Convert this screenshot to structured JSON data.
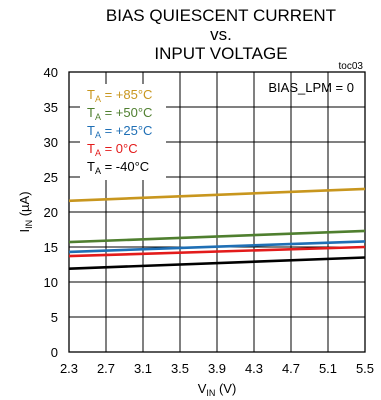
{
  "chart_data": {
    "type": "line",
    "title_lines": [
      "BIAS QUIESCENT CURRENT",
      "vs.",
      "INPUT VOLTAGE"
    ],
    "figure_id": "toc03",
    "annotation": "BIAS_LPM = 0",
    "xlabel": {
      "main": "V",
      "sub": "IN",
      "unit": " (V)"
    },
    "ylabel": {
      "main": "I",
      "sub": "IN",
      "unit": " (µA)"
    },
    "xlim": [
      2.3,
      5.5
    ],
    "ylim": [
      0,
      40
    ],
    "x_ticks": [
      "2.3",
      "2.7",
      "3.1",
      "3.5",
      "3.9",
      "4.3",
      "4.7",
      "5.1",
      "5.5"
    ],
    "y_ticks": [
      "0",
      "5",
      "10",
      "15",
      "20",
      "25",
      "30",
      "35",
      "40"
    ],
    "grid": true,
    "legend_position": "top-left",
    "series": [
      {
        "name": "+85°C",
        "label_prefix": "T",
        "label_sub": "A",
        "label_sep": " = ",
        "color": "#c8961e",
        "x": [
          2.3,
          5.5
        ],
        "y": [
          21.6,
          23.3
        ]
      },
      {
        "name": "+50°C",
        "label_prefix": "T",
        "label_sub": "A",
        "label_sep": " = ",
        "color": "#4f7f2f",
        "x": [
          2.3,
          5.5
        ],
        "y": [
          15.7,
          17.3
        ]
      },
      {
        "name": "+25°C",
        "label_prefix": "T",
        "label_sub": "A",
        "label_sep": " = ",
        "color": "#1f6fb5",
        "x": [
          2.3,
          5.5
        ],
        "y": [
          14.3,
          15.8
        ]
      },
      {
        "name": "0°C",
        "label_prefix": "T",
        "label_sub": "A",
        "label_sep": " = ",
        "color": "#e31b1b",
        "x": [
          2.3,
          5.5
        ],
        "y": [
          13.7,
          15.0
        ]
      },
      {
        "name": "-40°C",
        "label_prefix": "T",
        "label_sub": "A",
        "label_sep": " = ",
        "color": "#000000",
        "x": [
          2.3,
          5.5
        ],
        "y": [
          11.9,
          13.5
        ]
      }
    ]
  }
}
